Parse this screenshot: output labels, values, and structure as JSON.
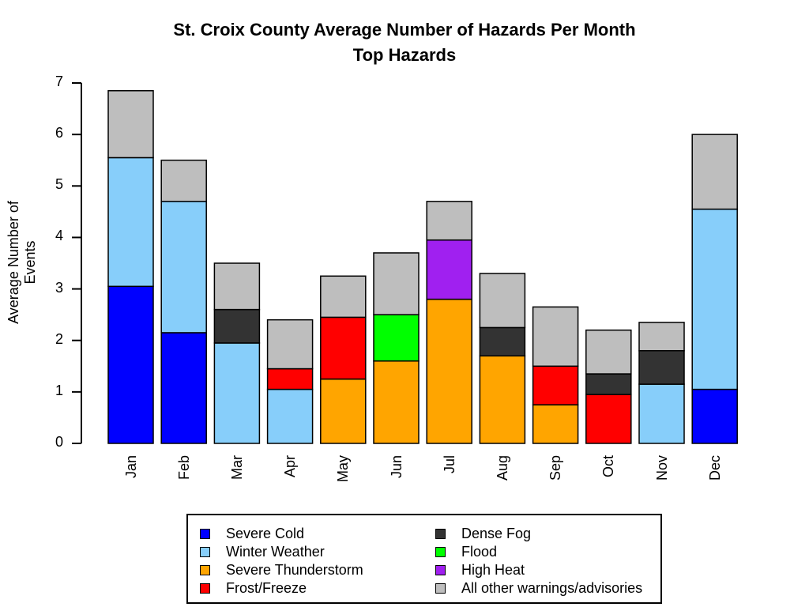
{
  "chart_data": {
    "type": "bar",
    "stacked": true,
    "title": "St. Croix County Average Number of Hazards Per Month",
    "subtitle": "Top Hazards",
    "xlabel": "",
    "ylabel": "Average Number of Events",
    "ylim": [
      0,
      7
    ],
    "yticks": [
      "0",
      "1",
      "2",
      "3",
      "4",
      "5",
      "6",
      "7"
    ],
    "categories": [
      "Jan",
      "Feb",
      "Mar",
      "Apr",
      "May",
      "Jun",
      "Jul",
      "Aug",
      "Sep",
      "Oct",
      "Nov",
      "Dec"
    ],
    "series": [
      {
        "name": "Severe Cold",
        "color": "#0000FF",
        "values": [
          3.05,
          2.15,
          0,
          0,
          0,
          0,
          0,
          0,
          0,
          0,
          0,
          1.05
        ]
      },
      {
        "name": "Winter Weather",
        "color": "#87CEFA",
        "values": [
          2.5,
          2.55,
          1.95,
          1.05,
          0,
          0,
          0,
          0,
          0,
          0,
          1.15,
          3.5
        ]
      },
      {
        "name": "Severe Thunderstorm",
        "color": "#FFA500",
        "values": [
          0,
          0,
          0,
          0,
          1.25,
          1.6,
          2.8,
          1.7,
          0.75,
          0,
          0,
          0
        ]
      },
      {
        "name": "Frost/Freeze",
        "color": "#FF0000",
        "values": [
          0,
          0,
          0,
          0.4,
          1.2,
          0,
          0,
          0,
          0.75,
          0.95,
          0,
          0
        ]
      },
      {
        "name": "Dense Fog",
        "color": "#333333",
        "values": [
          0,
          0,
          0.65,
          0,
          0,
          0,
          0,
          0.55,
          0,
          0.4,
          0.65,
          0
        ]
      },
      {
        "name": "Flood",
        "color": "#00FF00",
        "values": [
          0,
          0,
          0,
          0,
          0,
          0.9,
          0,
          0,
          0,
          0,
          0,
          0
        ]
      },
      {
        "name": "High Heat",
        "color": "#A020F0",
        "values": [
          0,
          0,
          0,
          0,
          0,
          0,
          1.15,
          0,
          0,
          0,
          0,
          0
        ]
      },
      {
        "name": "All other warnings/advisories",
        "color": "#BEBEBE",
        "values": [
          1.3,
          0.8,
          0.9,
          0.95,
          0.8,
          1.2,
          0.75,
          1.05,
          1.15,
          0.85,
          0.55,
          1.45
        ]
      }
    ],
    "legend": {
      "position": "bottom",
      "columns": [
        [
          "Severe Cold",
          "Winter Weather",
          "Severe Thunderstorm",
          "Frost/Freeze"
        ],
        [
          "Dense Fog",
          "Flood",
          "High Heat",
          "All other warnings/advisories"
        ]
      ]
    }
  }
}
